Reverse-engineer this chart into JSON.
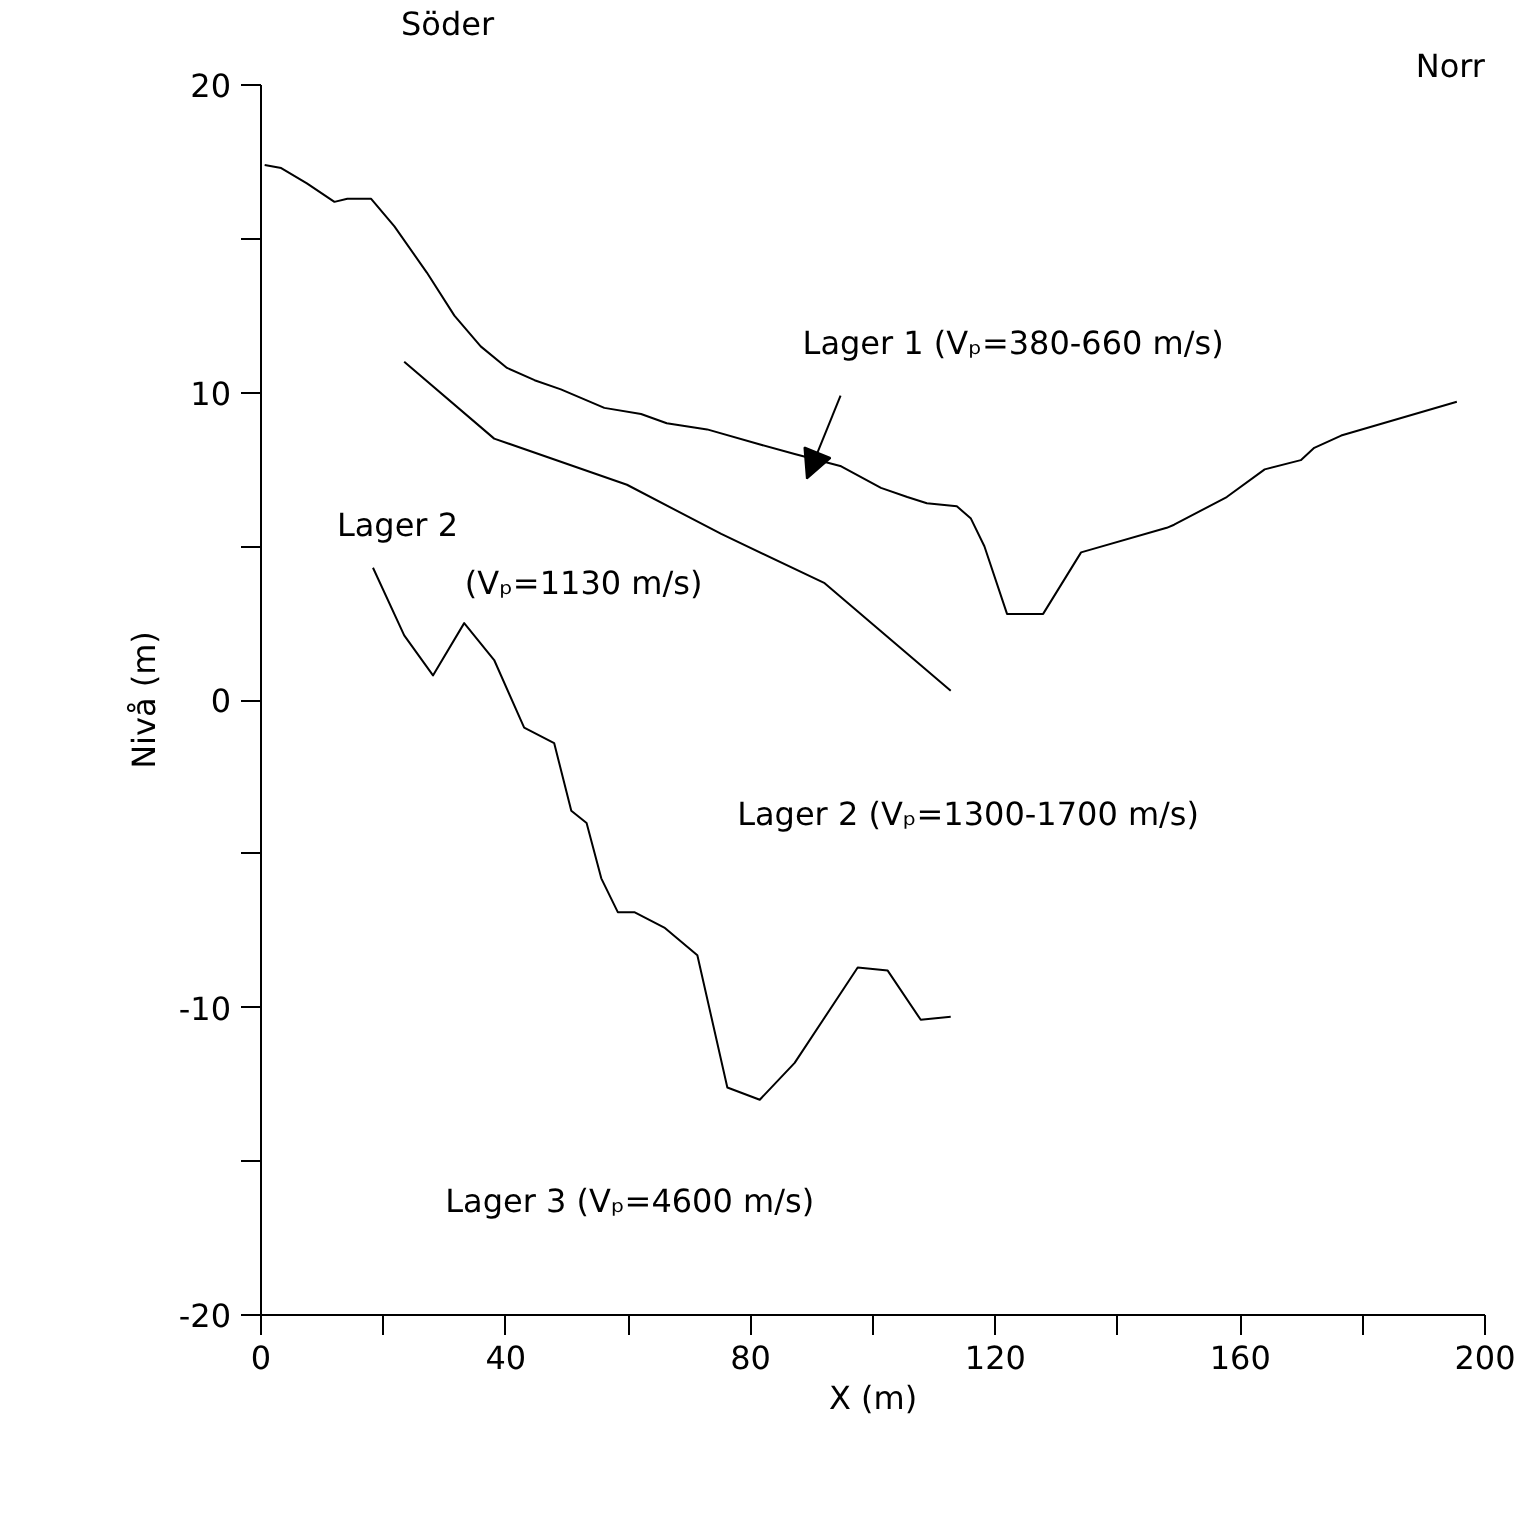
{
  "chart_data": {
    "type": "line",
    "xlabel": "X (m)",
    "ylabel": "Nivå (m)",
    "xlim": [
      0,
      200
    ],
    "ylim": [
      -20,
      20
    ],
    "xticks": [
      0,
      {
        "value": 20,
        "label": null
      },
      40,
      {
        "value": 60,
        "label": null
      },
      80,
      {
        "value": 100,
        "label": null
      },
      120,
      {
        "value": 140,
        "label": null
      },
      160,
      {
        "value": 180,
        "label": null
      },
      200
    ],
    "yticks": [
      -20,
      {
        "value": -15,
        "label": null
      },
      -10,
      {
        "value": -5,
        "label": null
      },
      0,
      {
        "value": 5,
        "label": null
      },
      10,
      {
        "value": 15,
        "label": null
      },
      20
    ],
    "grid": false,
    "marker": "none",
    "line_style": "solid",
    "series": [
      {
        "color": "#000000",
        "x": [
          0.6,
          3.3,
          7.5,
          12.0,
          14.1,
          18.0,
          21.8,
          27.1,
          31.6,
          35.9,
          40.2,
          44.7,
          49.0,
          56.1,
          62.1,
          66.3,
          72.9,
          81.7,
          87.2,
          94.8,
          101.3,
          105.6,
          108.8,
          113.7,
          116.0,
          118.2,
          121.9,
          127.8,
          134.0,
          148.0,
          149.2,
          157.8,
          164.0,
          169.9,
          172.1,
          176.5,
          195.4
        ],
        "values": [
          17.4,
          17.3,
          16.8,
          16.2,
          16.3,
          16.3,
          15.4,
          13.9,
          12.5,
          11.5,
          10.8,
          10.4,
          10.1,
          9.5,
          9.3,
          9.0,
          8.8,
          8.3,
          8.0,
          7.6,
          6.9,
          6.6,
          6.4,
          6.3,
          5.9,
          5.0,
          2.8,
          2.8,
          4.8,
          5.6,
          5.7,
          6.6,
          7.5,
          7.8,
          8.2,
          8.6,
          9.7
        ]
      },
      {
        "color": "#000000",
        "x": [
          23.4,
          38.1,
          59.8,
          75.2,
          92.1,
          112.7
        ],
        "values": [
          11.0,
          8.5,
          7.0,
          5.4,
          3.8,
          0.3
        ]
      },
      {
        "color": "#000000",
        "x": [
          18.3,
          23.4,
          28.1,
          33.2,
          38.1,
          43.0,
          47.9,
          50.7,
          53.2,
          55.6,
          58.3,
          61.0,
          65.9,
          71.3,
          76.2,
          81.5,
          87.2,
          97.5,
          102.4,
          107.8,
          112.7
        ],
        "values": [
          4.3,
          2.1,
          0.8,
          2.5,
          1.3,
          -0.9,
          -1.4,
          -3.6,
          -4.0,
          -5.8,
          -6.9,
          -6.9,
          -7.4,
          -8.3,
          -12.6,
          -13.0,
          -11.8,
          -8.7,
          -8.8,
          -10.4,
          -10.3
        ]
      }
    ],
    "annotations": [
      "Söder",
      "Norr",
      "Lager 1 (Vₚ=380-660 m/s)",
      "Lager 2",
      "(Vₚ=1130 m/s)",
      "Lager 2 (Vₚ=1300-1700 m/s)",
      "Lager 3 (Vₚ=4600 m/s)"
    ]
  }
}
